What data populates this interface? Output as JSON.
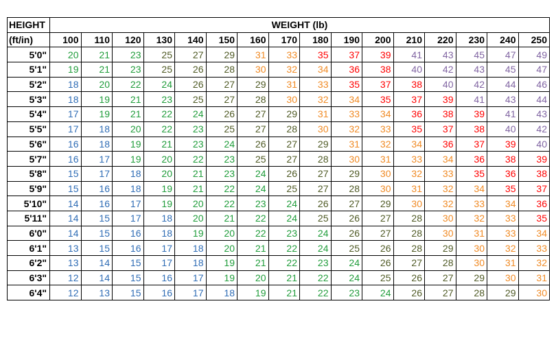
{
  "table": {
    "height_header": "HEIGHT",
    "height_subheader": "(ft/in)",
    "weight_header": "WEIGHT (lb)",
    "weights": [
      "100",
      "110",
      "120",
      "130",
      "140",
      "150",
      "160",
      "170",
      "180",
      "190",
      "200",
      "210",
      "220",
      "230",
      "240",
      "250"
    ],
    "rows": [
      {
        "height": "5'0\"",
        "values": [
          20,
          21,
          23,
          25,
          27,
          29,
          31,
          33,
          35,
          37,
          39,
          41,
          43,
          45,
          47,
          49
        ]
      },
      {
        "height": "5'1\"",
        "values": [
          19,
          21,
          23,
          25,
          26,
          28,
          30,
          32,
          34,
          36,
          38,
          40,
          42,
          43,
          45,
          47
        ]
      },
      {
        "height": "5'2\"",
        "values": [
          18,
          20,
          22,
          24,
          26,
          27,
          29,
          31,
          33,
          35,
          37,
          38,
          40,
          42,
          44,
          46
        ]
      },
      {
        "height": "5'3\"",
        "values": [
          18,
          19,
          21,
          23,
          25,
          27,
          28,
          30,
          32,
          34,
          35,
          37,
          39,
          41,
          43,
          44
        ]
      },
      {
        "height": "5'4\"",
        "values": [
          17,
          19,
          21,
          22,
          24,
          26,
          27,
          29,
          31,
          33,
          34,
          36,
          38,
          39,
          41,
          43
        ]
      },
      {
        "height": "5'5\"",
        "values": [
          17,
          18,
          20,
          22,
          23,
          25,
          27,
          28,
          30,
          32,
          33,
          35,
          37,
          38,
          40,
          42
        ]
      },
      {
        "height": "5'6\"",
        "values": [
          16,
          18,
          19,
          21,
          23,
          24,
          26,
          27,
          29,
          31,
          32,
          34,
          36,
          37,
          39,
          40
        ]
      },
      {
        "height": "5'7\"",
        "values": [
          16,
          17,
          19,
          20,
          22,
          23,
          25,
          27,
          28,
          30,
          31,
          33,
          34,
          36,
          38,
          39
        ]
      },
      {
        "height": "5'8\"",
        "values": [
          15,
          17,
          18,
          20,
          21,
          23,
          24,
          26,
          27,
          29,
          30,
          32,
          33,
          35,
          36,
          38
        ]
      },
      {
        "height": "5'9\"",
        "values": [
          15,
          16,
          18,
          19,
          21,
          22,
          24,
          25,
          27,
          28,
          30,
          31,
          32,
          34,
          35,
          37
        ]
      },
      {
        "height": "5'10\"",
        "values": [
          14,
          16,
          17,
          19,
          20,
          22,
          23,
          24,
          26,
          27,
          29,
          30,
          32,
          33,
          34,
          36
        ]
      },
      {
        "height": "5'11\"",
        "values": [
          14,
          15,
          17,
          18,
          20,
          21,
          22,
          24,
          25,
          26,
          27,
          28,
          30,
          32,
          33,
          35
        ]
      },
      {
        "height": "6'0\"",
        "values": [
          14,
          15,
          16,
          18,
          19,
          20,
          22,
          23,
          24,
          26,
          27,
          28,
          30,
          31,
          33,
          34
        ]
      },
      {
        "height": "6'1\"",
        "values": [
          13,
          15,
          16,
          17,
          18,
          20,
          21,
          22,
          24,
          25,
          26,
          28,
          29,
          30,
          32,
          33
        ]
      },
      {
        "height": "6'2\"",
        "values": [
          13,
          14,
          15,
          17,
          18,
          19,
          21,
          22,
          23,
          24,
          26,
          27,
          28,
          30,
          31,
          32
        ]
      },
      {
        "height": "6'3\"",
        "values": [
          12,
          14,
          15,
          16,
          17,
          19,
          20,
          21,
          22,
          24,
          25,
          26,
          27,
          29,
          30,
          31
        ]
      },
      {
        "height": "6'4\"",
        "values": [
          12,
          13,
          15,
          16,
          17,
          18,
          19,
          21,
          22,
          23,
          24,
          26,
          27,
          28,
          29,
          30
        ]
      }
    ]
  },
  "colors": {
    "blue": "#2e6cb5",
    "green": "#1f9c3a",
    "olive": "#4f5a25",
    "orange": "#f08a24",
    "red": "#ff0000",
    "purple": "#8064a2"
  }
}
